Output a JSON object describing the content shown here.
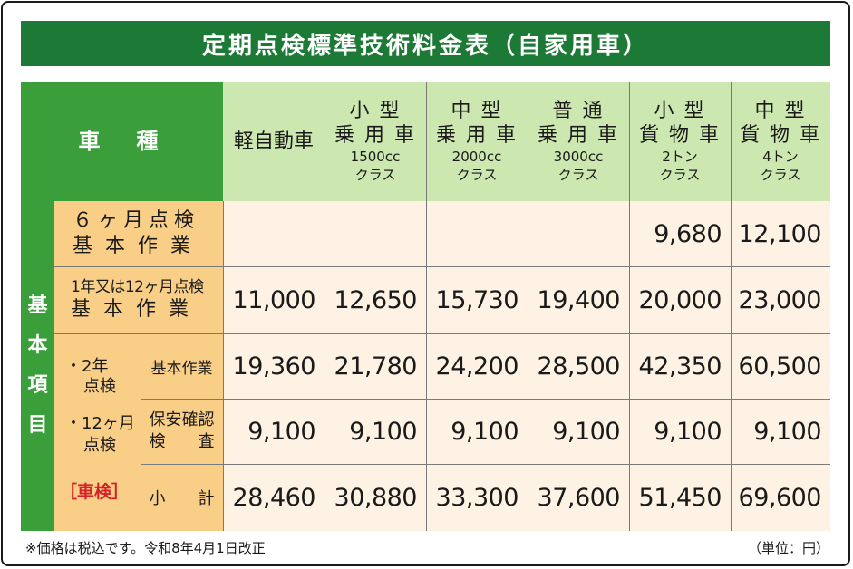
{
  "title": "定期点検標準技術料金表（自家用車）",
  "header": {
    "vehicle_type_label": "車　種",
    "columns": [
      {
        "line1": "軽自動車",
        "line2": "",
        "line3": "",
        "line4": ""
      },
      {
        "line1": "小 型",
        "line2": "乗 用 車",
        "line3": "1500cc",
        "line4": "クラス"
      },
      {
        "line1": "中 型",
        "line2": "乗 用 車",
        "line3": "2000cc",
        "line4": "クラス"
      },
      {
        "line1": "普 通",
        "line2": "乗 用 車",
        "line3": "3000cc",
        "line4": "クラス"
      },
      {
        "line1": "小 型",
        "line2": "貨 物 車",
        "line3": "2トン",
        "line4": "クラス"
      },
      {
        "line1": "中 型",
        "line2": "貨 物 車",
        "line3": "4トン",
        "line4": "クラス"
      }
    ]
  },
  "side_label": [
    "基",
    "本",
    "項",
    "目"
  ],
  "rows": {
    "six_month": {
      "label1": "６ヶ月点検",
      "label2": "基本作業",
      "values": [
        "",
        "",
        "",
        "",
        "9,680",
        "12,100"
      ]
    },
    "annual": {
      "label1": "1年又は12ヶ月点検",
      "label2": "基本作業",
      "values": [
        "11,000",
        "12,650",
        "15,730",
        "19,400",
        "20,000",
        "23,000"
      ]
    },
    "shaken_group": {
      "label_a1": "・2年",
      "label_a2": "点検",
      "label_b1": "・12ヶ月",
      "label_b2": "点検",
      "label_c": "［車検］"
    },
    "basic_work": {
      "label": "基本作業",
      "values": [
        "19,360",
        "21,780",
        "24,200",
        "28,500",
        "42,350",
        "60,500"
      ]
    },
    "safety_check": {
      "label1": "保安確認",
      "label2": "検　　査",
      "values": [
        "9,100",
        "9,100",
        "9,100",
        "9,100",
        "9,100",
        "9,100"
      ]
    },
    "subtotal": {
      "label": "小　　計",
      "values": [
        "28,460",
        "30,880",
        "33,300",
        "37,600",
        "51,450",
        "69,600"
      ]
    }
  },
  "footnote": "※価格は税込です。令和8年4月1日改正",
  "unit": "（単位：円）",
  "colors": {
    "title_bg": "#1d7a36",
    "header_green": "#3a9f3a",
    "header_light_green": "#cde7b0",
    "label_orange": "#f9cf87",
    "cell_cream": "#fdf2e4",
    "accent_red": "#d4202a"
  }
}
